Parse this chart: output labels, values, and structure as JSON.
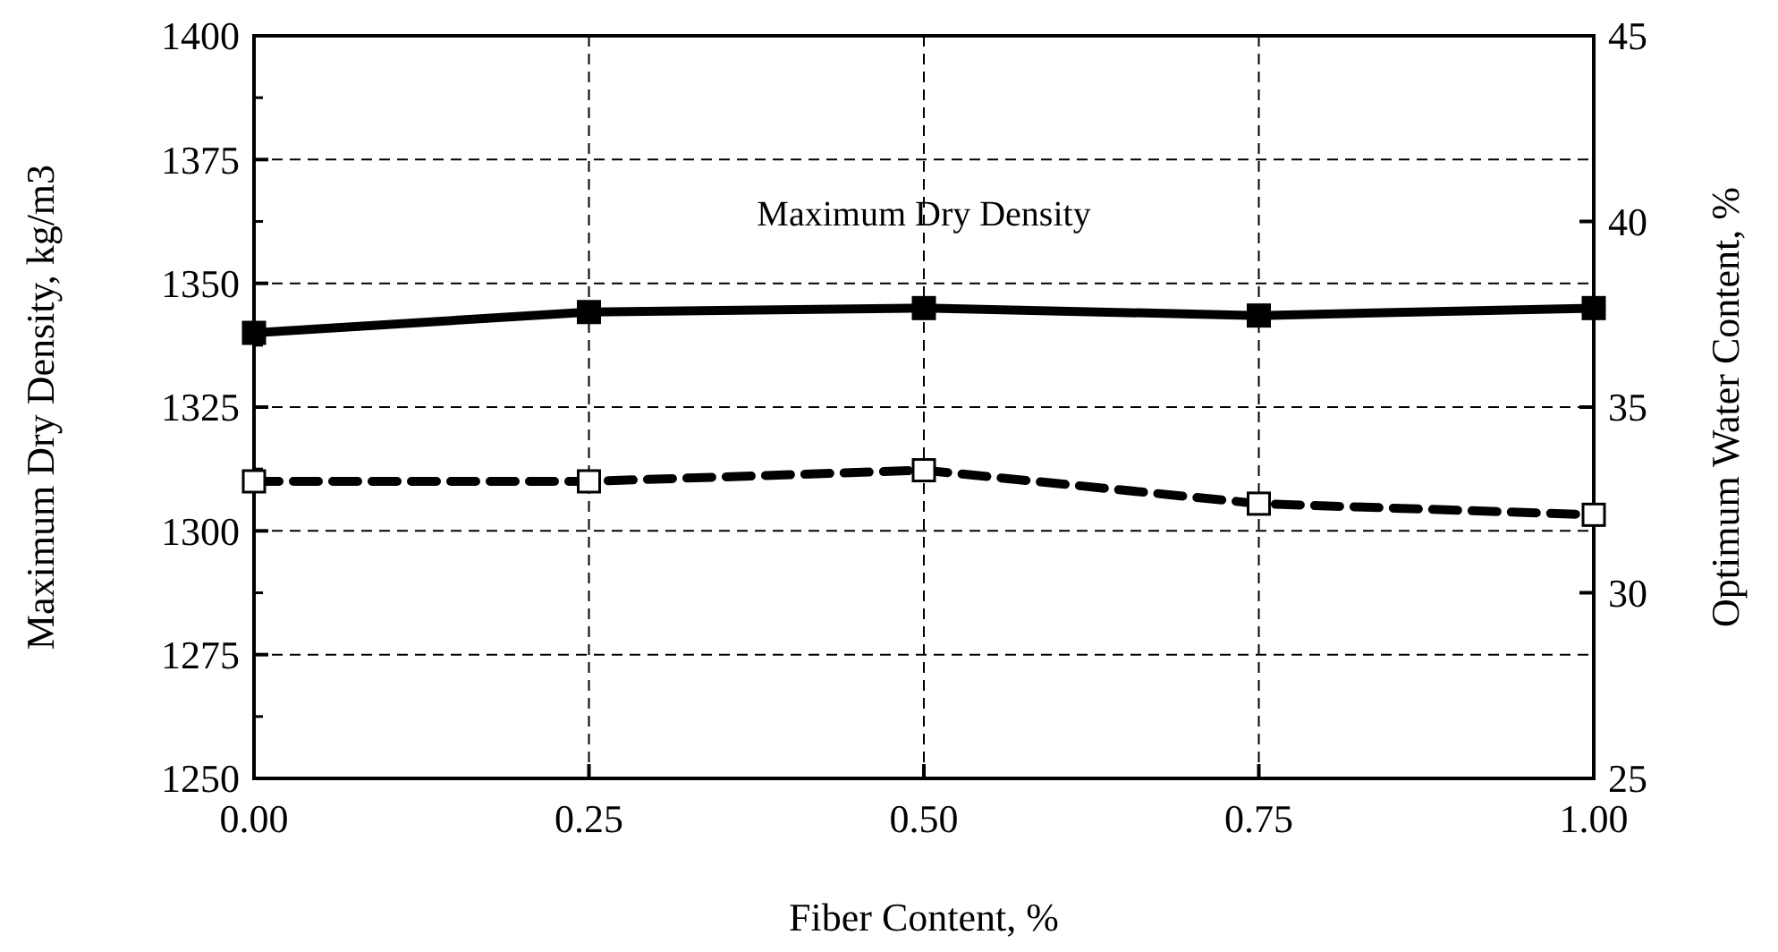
{
  "chart_data": {
    "type": "line",
    "xlabel": "Fiber Content, %",
    "ylabel": "Maximum Dry Density, kg/m3",
    "y2label": "Optimum Water Content, %",
    "x": [
      0,
      0.25,
      0.5,
      0.75,
      1
    ],
    "series": [
      {
        "color": "#000000",
        "values": [
          1340,
          1344.2,
          1345,
          1343.5,
          1345
        ],
        "marker": "square",
        "line_style": "solid"
      },
      {
        "color": "#000000",
        "values": [
          33,
          33,
          33.3,
          32.4,
          32.1
        ],
        "axis": "y2",
        "marker": "square",
        "line_style": "dashed"
      }
    ],
    "xlim": [
      0,
      1
    ],
    "xticks": [
      {
        "value": 0,
        "label": "0.00"
      },
      {
        "value": 0.25,
        "label": "0.25"
      },
      {
        "value": 0.5,
        "label": "0.50"
      },
      {
        "value": 0.75,
        "label": "0.75"
      },
      {
        "value": 1,
        "label": "1.00"
      }
    ],
    "ylim": [
      1250,
      1400
    ],
    "yticks": [
      1250,
      1275,
      1300,
      1325,
      1350,
      1375,
      1400
    ],
    "y2lim": [
      25,
      45
    ],
    "y2ticks": [
      25,
      30,
      35,
      40,
      45
    ],
    "grid": true,
    "annotations": [
      "Maximum Dry Density"
    ]
  }
}
